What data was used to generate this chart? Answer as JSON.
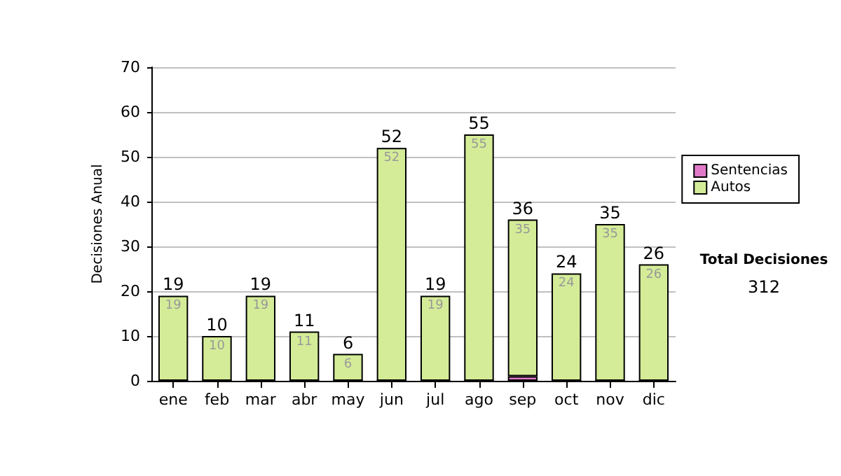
{
  "chart_data": {
    "type": "bar",
    "ylabel": "Decisiones Anual",
    "categories": [
      "ene",
      "feb",
      "mar",
      "abr",
      "may",
      "jun",
      "jul",
      "ago",
      "sep",
      "oct",
      "nov",
      "dic"
    ],
    "stacked": true,
    "series": [
      {
        "name": "Sentencias",
        "color": "#e07ac8",
        "values": [
          0,
          0,
          0,
          0,
          0,
          0,
          0,
          0,
          1,
          0,
          0,
          0
        ]
      },
      {
        "name": "Autos",
        "color": "#d4ec98",
        "values": [
          19,
          10,
          19,
          11,
          6,
          52,
          19,
          55,
          35,
          24,
          35,
          26
        ],
        "value_labels": [
          "19",
          "10",
          "19",
          "11",
          "6",
          "52",
          "19",
          "55",
          "35",
          "24",
          "35",
          "26"
        ]
      }
    ],
    "totals": [
      "19",
      "10",
      "19",
      "11",
      "6",
      "52",
      "19",
      "55",
      "36",
      "24",
      "35",
      "26"
    ],
    "ylim": [
      0,
      70
    ],
    "yticks": [
      0,
      10,
      20,
      30,
      40,
      50,
      60,
      70
    ],
    "grid": "y",
    "legend": "right",
    "annotations": [
      "Total Decisiones",
      "312"
    ]
  }
}
